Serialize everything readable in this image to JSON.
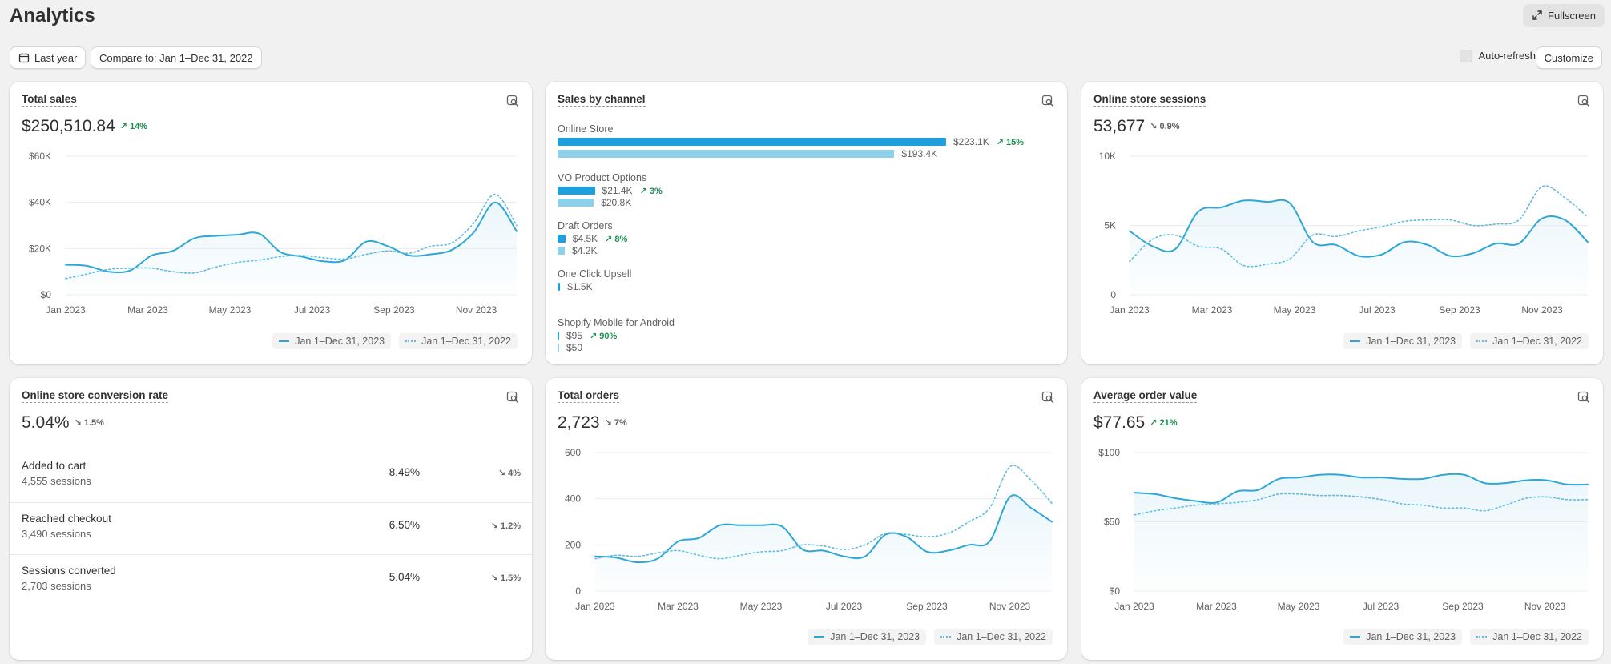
{
  "header": {
    "title": "Analytics",
    "fullscreen_label": "Fullscreen",
    "date_label": "Last year",
    "compare_label": "Compare to: Jan 1–Dec 31, 2022",
    "autorefresh_label": "Auto-refresh",
    "customize_label": "Customize"
  },
  "legend": {
    "current": "Jan 1–Dec 31, 2023",
    "previous": "Jan 1–Dec 31, 2022"
  },
  "colors": {
    "current": "#2ea7d6",
    "previous": "#62bde0",
    "up": "#1a8f4f"
  },
  "x_ticks": [
    "Jan 2023",
    "Mar 2023",
    "May 2023",
    "Jul 2023",
    "Sep 2023",
    "Nov 2023"
  ],
  "total_sales": {
    "title": "Total sales",
    "value": "$250,510.84",
    "delta": "↗ 14%",
    "delta_dir": "up",
    "chart_data": {
      "type": "line",
      "y_ticks": [
        "$60K",
        "$40K",
        "$20K",
        "$0"
      ],
      "ylim": [
        0,
        60000
      ],
      "series": [
        {
          "name": "Jan 1–Dec 31, 2023",
          "style": "solid",
          "values": [
            13000,
            12500,
            10000,
            10500,
            17000,
            19000,
            24500,
            25500,
            26000,
            26500,
            18500,
            16500,
            14500,
            15000,
            23000,
            21000,
            17000,
            17500,
            19500,
            27000,
            40000,
            27500
          ]
        },
        {
          "name": "Jan 1–Dec 31, 2022",
          "style": "dotted",
          "values": [
            7000,
            9000,
            11000,
            11500,
            11500,
            10000,
            9500,
            12000,
            14000,
            15000,
            16500,
            17000,
            16000,
            15500,
            17500,
            19000,
            18000,
            21000,
            22500,
            31000,
            43500,
            30000
          ]
        }
      ]
    }
  },
  "sales_by_channel": {
    "title": "Sales by channel",
    "chart_data": {
      "type": "bar",
      "categories": [
        "Online Store",
        "VO Product Options",
        "Draft Orders",
        "One Click Upsell",
        "Shopify Mobile for Android"
      ],
      "series": [
        {
          "name": "Jan 1–Dec 31, 2023",
          "values": [
            223100,
            21400,
            4500,
            1500,
            95
          ],
          "labels": [
            "$223.1K",
            "$21.4K",
            "$4.5K",
            "$1.5K",
            "$95"
          ]
        },
        {
          "name": "Jan 1–Dec 31, 2022",
          "values": [
            193400,
            20800,
            4200,
            null,
            50
          ],
          "labels": [
            "$193.4K",
            "$20.8K",
            "$4.2K",
            "",
            "$50"
          ]
        }
      ],
      "deltas": [
        "↗ 15%",
        "↗ 3%",
        "↗ 8%",
        "",
        "↗ 90%"
      ]
    }
  },
  "sessions": {
    "title": "Online store sessions",
    "value": "53,677",
    "delta": "↘ 0.9%",
    "delta_dir": "down",
    "chart_data": {
      "type": "line",
      "y_ticks": [
        "10K",
        "5K",
        "0"
      ],
      "ylim": [
        0,
        10000
      ],
      "series": [
        {
          "name": "Jan 1–Dec 31, 2023",
          "style": "solid",
          "values": [
            4600,
            3500,
            3300,
            6000,
            6300,
            6800,
            6700,
            6600,
            3800,
            3600,
            2800,
            2900,
            3800,
            3600,
            2800,
            3000,
            3700,
            3700,
            5500,
            5400,
            3800
          ]
        },
        {
          "name": "Jan 1–Dec 31, 2022",
          "style": "dotted",
          "values": [
            2400,
            4000,
            4300,
            3500,
            3300,
            2100,
            2200,
            2600,
            4300,
            4200,
            4600,
            4900,
            5300,
            5400,
            5400,
            5000,
            5100,
            5400,
            7800,
            7000,
            5600
          ]
        }
      ]
    }
  },
  "conversion": {
    "title": "Online store conversion rate",
    "value": "5.04%",
    "delta": "↘ 1.5%",
    "delta_dir": "down",
    "rows": [
      {
        "label": "Added to cart",
        "sessions": "4,555 sessions",
        "pct": "8.49%",
        "delta": "↘ 4%"
      },
      {
        "label": "Reached checkout",
        "sessions": "3,490 sessions",
        "pct": "6.50%",
        "delta": "↘ 1.2%"
      },
      {
        "label": "Sessions converted",
        "sessions": "2,703 sessions",
        "pct": "5.04%",
        "delta": "↘ 1.5%"
      }
    ]
  },
  "total_orders": {
    "title": "Total orders",
    "value": "2,723",
    "delta": "↘ 7%",
    "delta_dir": "down",
    "chart_data": {
      "type": "line",
      "y_ticks": [
        "600",
        "400",
        "200",
        "0"
      ],
      "ylim": [
        0,
        600
      ],
      "series": [
        {
          "name": "Jan 1–Dec 31, 2023",
          "style": "solid",
          "values": [
            150,
            145,
            125,
            140,
            215,
            230,
            285,
            285,
            285,
            280,
            180,
            175,
            150,
            150,
            245,
            235,
            170,
            175,
            200,
            215,
            410,
            360,
            300
          ]
        },
        {
          "name": "Jan 1–Dec 31, 2022",
          "style": "dotted",
          "values": [
            140,
            155,
            150,
            165,
            175,
            155,
            140,
            155,
            170,
            175,
            200,
            195,
            180,
            200,
            250,
            245,
            235,
            250,
            300,
            360,
            540,
            480,
            380
          ]
        }
      ]
    }
  },
  "aov": {
    "title": "Average order value",
    "value": "$77.65",
    "delta": "↗ 21%",
    "delta_dir": "up",
    "chart_data": {
      "type": "line",
      "y_ticks": [
        "$100",
        "$50",
        "$0"
      ],
      "ylim": [
        0,
        100
      ],
      "series": [
        {
          "name": "Jan 1–Dec 31, 2023",
          "style": "solid",
          "values": [
            71,
            70,
            67,
            65,
            64,
            72,
            73,
            81,
            82,
            84,
            84,
            82,
            82,
            81,
            81,
            84,
            84,
            78,
            78,
            80,
            80,
            77,
            77
          ]
        },
        {
          "name": "Jan 1–Dec 31, 2022",
          "style": "dotted",
          "values": [
            55,
            58,
            60,
            62,
            63,
            64,
            66,
            70,
            70,
            69,
            69,
            68,
            66,
            63,
            62,
            60,
            60,
            58,
            62,
            67,
            68,
            66,
            66
          ]
        }
      ]
    }
  }
}
